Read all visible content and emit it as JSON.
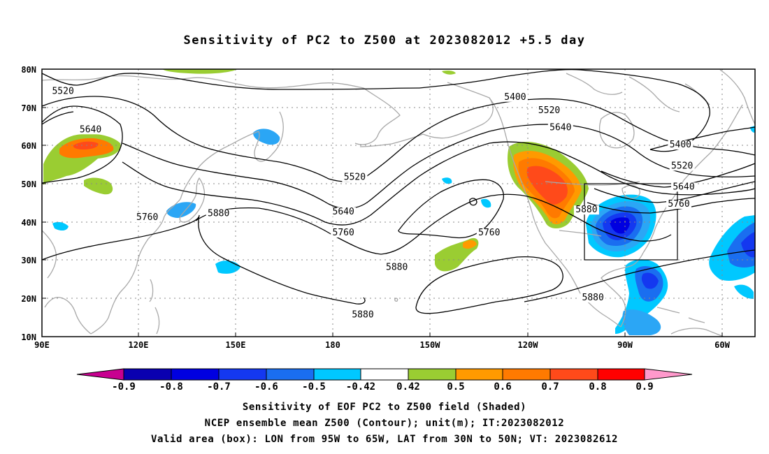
{
  "title": "Sensitivity of PC2 to Z500 at 2023082012 +5.5 day",
  "colors": {
    "neg_0.9": "#0a00b0",
    "neg_0.8": "#0000e0",
    "neg_0.7": "#1438f0",
    "neg_0.6": "#1a6ef0",
    "neg_0.5": "#2ba6f5",
    "neg_0.42": "#00c8ff",
    "neutral": "#ffffff",
    "pos_0.42": "#9acd32",
    "pos_0.5": "#ff9a00",
    "pos_0.6": "#ff7a00",
    "pos_0.7": "#ff4a1a",
    "pos_0.8": "#ff0000",
    "under": "#c80090",
    "over": "#ff99cc",
    "coast": "#a8a8a8",
    "contour": "#000000"
  },
  "axes": {
    "lon_labels": [
      "90E",
      "120E",
      "150E",
      "180",
      "150W",
      "120W",
      "90W",
      "60W"
    ],
    "lat_labels": [
      "80N",
      "70N",
      "60N",
      "50N",
      "40N",
      "30N",
      "20N",
      "10N"
    ],
    "lon_range": [
      90,
      310
    ],
    "lat_range": [
      10,
      80
    ],
    "grid": true
  },
  "contour_labels": [
    {
      "text": "5520",
      "lon": 96.5,
      "lat": 73.5
    },
    {
      "text": "5640",
      "lon": 105,
      "lat": 63.5
    },
    {
      "text": "5760",
      "lon": 122.5,
      "lat": 40.5
    },
    {
      "text": "5880",
      "lon": 144.5,
      "lat": 41.5
    },
    {
      "text": "5400",
      "lon": 236,
      "lat": 72.0
    },
    {
      "text": "5520",
      "lon": 246.5,
      "lat": 68.5
    },
    {
      "text": "5640",
      "lon": 250,
      "lat": 64.0
    },
    {
      "text": "5520",
      "lon": 186.5,
      "lat": 51.0
    },
    {
      "text": "5640",
      "lon": 183.0,
      "lat": 42.0
    },
    {
      "text": "5760",
      "lon": 183.0,
      "lat": 36.5
    },
    {
      "text": "5880",
      "lon": 199.5,
      "lat": 27.5
    },
    {
      "text": "5760",
      "lon": 228.0,
      "lat": 36.5
    },
    {
      "text": "5880",
      "lon": 189.0,
      "lat": 15.0
    },
    {
      "text": "5880",
      "lon": 258.0,
      "lat": 42.5
    },
    {
      "text": "5880",
      "lon": 260.0,
      "lat": 19.5
    },
    {
      "text": "5400",
      "lon": 287.0,
      "lat": 59.5
    },
    {
      "text": "5520",
      "lon": 287.5,
      "lat": 54.0
    },
    {
      "text": "5640",
      "lon": 288.0,
      "lat": 48.5
    },
    {
      "text": "5760",
      "lon": 286.5,
      "lat": 44.0
    }
  ],
  "colorbar": {
    "labels": [
      "-0.9",
      "-0.8",
      "-0.7",
      "-0.6",
      "-0.5",
      "-0.42",
      "0.42",
      "0.5",
      "0.6",
      "0.7",
      "0.8",
      "0.9"
    ]
  },
  "valid_box": {
    "lon_min": 265,
    "lon_max": 295,
    "lat_min": 30,
    "lat_max": 50
  },
  "captions": {
    "line1": "Sensitivity of EOF PC2 to Z500 field (Shaded)",
    "line2": "NCEP ensemble mean Z500 (Contour); unit(m); IT:2023082012",
    "line3": "Valid area (box): LON from 95W to 65W, LAT from 30N to 50N; VT: 2023082612"
  }
}
